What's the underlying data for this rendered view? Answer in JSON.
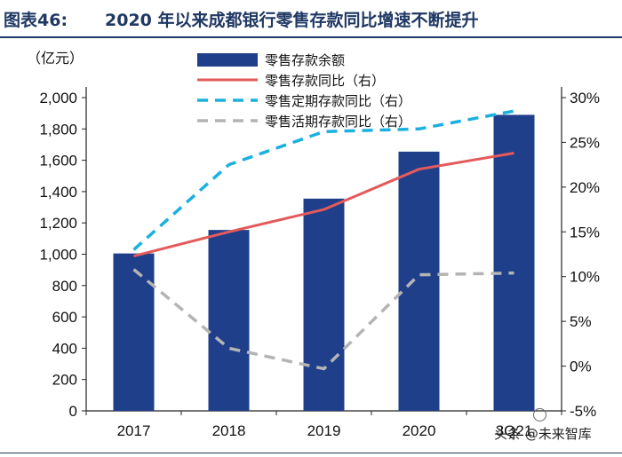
{
  "header": {
    "figure_number": "图表46:",
    "figure_title": "2020 年以来成都银行零售存款同比增速不断提升"
  },
  "unit_label": "（亿元）",
  "watermark": "头条 @未来智库",
  "chart_data": {
    "type": "bar",
    "categories": [
      "2017",
      "2018",
      "2019",
      "2020",
      "3Q21"
    ],
    "y_left": {
      "lim": [
        0,
        2000
      ],
      "ticks": [
        "0",
        "200",
        "400",
        "600",
        "800",
        "1,000",
        "1,200",
        "1,400",
        "1,600",
        "1,800",
        "2,000"
      ]
    },
    "y_right": {
      "lim": [
        -5,
        30
      ],
      "ticks": [
        "-5%",
        "0%",
        "5%",
        "10%",
        "15%",
        "20%",
        "25%",
        "30%"
      ]
    },
    "legend_position": "top-center",
    "series": [
      {
        "name": "零售存款余额",
        "type": "bar",
        "axis": "left",
        "color": "#1f3f8b",
        "values": [
          1005,
          1155,
          1355,
          1655,
          1890
        ]
      },
      {
        "name": "零售存款同比（右）",
        "type": "line",
        "axis": "right",
        "color": "#e45a5a",
        "dash": "solid",
        "values": [
          12.3,
          15.0,
          17.5,
          22.0,
          23.8
        ]
      },
      {
        "name": "零售定期存款同比（右）",
        "type": "line",
        "axis": "right",
        "color": "#1ab0e0",
        "dash": "dashed",
        "values": [
          13.0,
          22.5,
          26.2,
          26.5,
          28.5
        ]
      },
      {
        "name": "零售活期存款同比（右）",
        "type": "line",
        "axis": "right",
        "color": "#b4b4b4",
        "dash": "dashed",
        "values": [
          10.8,
          2.0,
          -0.3,
          10.2,
          10.4
        ]
      }
    ]
  }
}
